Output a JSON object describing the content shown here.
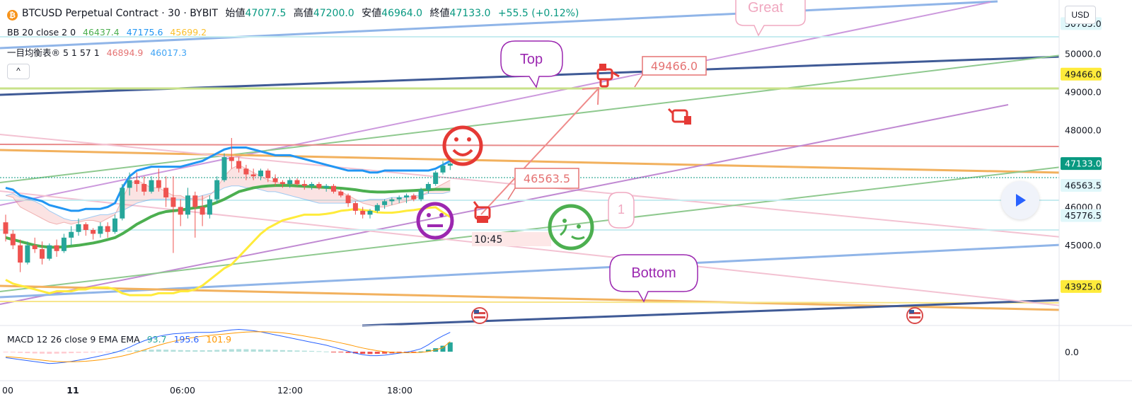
{
  "header": {
    "symbol_title": "BTCUSD Perpetual Contract · 30 · BYBIT",
    "coin_glyph": "₿",
    "open_label": "始値",
    "open_value": "47077.5",
    "high_label": "高値",
    "high_value": "47200.0",
    "low_label": "安値",
    "low_value": "46964.0",
    "close_label": "終値",
    "close_value": "47133.0",
    "change_value": "+55.5 (+0.12%)"
  },
  "bb_legend": {
    "name": "BB 20 close 2 0",
    "basis": "46437.4",
    "upper": "47175.6",
    "lower": "45699.2"
  },
  "ichimoku_legend": {
    "name": "一目均衡表® 5 1 57 1",
    "v1": "46894.9",
    "v2": "46017.3"
  },
  "macd_legend": {
    "name": "MACD 12 26 close 9 EMA EMA",
    "hist": "93.7",
    "macd": "195.6",
    "signal": "101.9"
  },
  "controls": {
    "collapse_glyph": "^",
    "currency": "USD"
  },
  "colors": {
    "up": "#26a69a",
    "down": "#ef5350",
    "bb_basis": "#4caf50",
    "bb_upper": "#2196f3",
    "bb_lower": "#ffeb3b",
    "ichimoku_a": "#e57373",
    "ichimoku_b": "#42a5f5",
    "macd_line": "#2962ff",
    "signal_line": "#ff9800"
  },
  "annotations": {
    "top_label": "Top",
    "bottom_label": "Bottom",
    "great_label": "Great",
    "one_label": "1",
    "price_tag_high": "49466.0",
    "price_tag_low": "46563.5",
    "time_label": "10:45"
  },
  "chart_data": {
    "type": "candlestick",
    "ylim": [
      43000,
      51400
    ],
    "y_ticks": [
      "50785.0",
      "50000.0",
      "49466.0",
      "49000.0",
      "48000.0",
      "47133.0",
      "46563.5",
      "46000.0",
      "45776.5",
      "45000.0",
      "43925.0"
    ],
    "x_ticks": [
      "00",
      "11",
      "06:00",
      "12:00",
      "18:00"
    ],
    "macd_y_tick": "0.0",
    "highlighted_levels": [
      {
        "label": "50785.0",
        "color": "#e0f7fa",
        "text": "#131722"
      },
      {
        "label": "49466.0",
        "color": "#ffeb3b",
        "text": "#131722"
      },
      {
        "label": "47133.0",
        "color": "#089981",
        "text": "#ffffff"
      },
      {
        "label": "46563.5",
        "color": "#e0f7fa",
        "text": "#131722"
      },
      {
        "label": "45776.5",
        "color": "#e0f7fa",
        "text": "#131722"
      },
      {
        "label": "43925.0",
        "color": "#ffeb3b",
        "text": "#131722"
      }
    ],
    "candles": [
      [
        45600,
        45800,
        45100,
        45300
      ],
      [
        45300,
        45400,
        44900,
        45000
      ],
      [
        45000,
        45150,
        44300,
        44550
      ],
      [
        44550,
        45100,
        44500,
        45000
      ],
      [
        45000,
        45200,
        44800,
        44900
      ],
      [
        44900,
        45100,
        44500,
        44650
      ],
      [
        44650,
        45050,
        44600,
        45000
      ],
      [
        45000,
        45150,
        44700,
        44850
      ],
      [
        44850,
        45300,
        44800,
        45200
      ],
      [
        45200,
        45500,
        45000,
        45350
      ],
      [
        45350,
        45700,
        45250,
        45550
      ],
      [
        45550,
        45600,
        45250,
        45400
      ],
      [
        45400,
        45450,
        45150,
        45300
      ],
      [
        45300,
        45600,
        45200,
        45500
      ],
      [
        45500,
        45600,
        45200,
        45350
      ],
      [
        45350,
        45800,
        45300,
        45700
      ],
      [
        45700,
        46600,
        45650,
        46500
      ],
      [
        46500,
        46900,
        46300,
        46700
      ],
      [
        46700,
        46900,
        46400,
        46600
      ],
      [
        46600,
        46800,
        46300,
        46400
      ],
      [
        46400,
        46800,
        46350,
        46700
      ],
      [
        46700,
        47000,
        46400,
        46500
      ],
      [
        46500,
        46800,
        46000,
        46250
      ],
      [
        46250,
        46800,
        44800,
        46000
      ],
      [
        46000,
        46200,
        45500,
        45800
      ],
      [
        45800,
        46500,
        45700,
        46300
      ],
      [
        46300,
        46400,
        45200,
        46000
      ],
      [
        46000,
        46300,
        45500,
        45800
      ],
      [
        45800,
        46300,
        45700,
        46200
      ],
      [
        46200,
        46800,
        46100,
        46700
      ],
      [
        46700,
        47400,
        46650,
        47300
      ],
      [
        47300,
        47800,
        47000,
        47200
      ],
      [
        47200,
        47300,
        46900,
        47000
      ],
      [
        47000,
        47100,
        46700,
        46850
      ],
      [
        46850,
        47000,
        46700,
        46800
      ],
      [
        46800,
        47000,
        46700,
        46950
      ],
      [
        46950,
        47000,
        46650,
        46750
      ],
      [
        46750,
        46850,
        46550,
        46650
      ],
      [
        46650,
        46700,
        46500,
        46600
      ],
      [
        46600,
        46750,
        46500,
        46700
      ],
      [
        46700,
        46750,
        46550,
        46600
      ],
      [
        46600,
        46700,
        46450,
        46550
      ],
      [
        46550,
        46650,
        46450,
        46600
      ],
      [
        46600,
        46650,
        46450,
        46500
      ],
      [
        46500,
        46600,
        46400,
        46550
      ],
      [
        46550,
        46600,
        46350,
        46400
      ],
      [
        46400,
        46450,
        46250,
        46300
      ],
      [
        46300,
        46350,
        46000,
        46100
      ],
      [
        46100,
        46150,
        45800,
        45900
      ],
      [
        45900,
        46000,
        45700,
        45800
      ],
      [
        45800,
        45950,
        45700,
        45900
      ],
      [
        45900,
        46100,
        45850,
        46050
      ],
      [
        46050,
        46200,
        45950,
        46150
      ],
      [
        46150,
        46250,
        46050,
        46200
      ],
      [
        46200,
        46300,
        46100,
        46250
      ],
      [
        46250,
        46350,
        46100,
        46300
      ],
      [
        46300,
        46350,
        46150,
        46200
      ],
      [
        46200,
        46500,
        46150,
        46450
      ],
      [
        46450,
        46650,
        46350,
        46600
      ],
      [
        46600,
        46950,
        46550,
        46900
      ],
      [
        46900,
        47200,
        46850,
        47077.5
      ],
      [
        47077.5,
        47200,
        46964,
        47133
      ]
    ],
    "bb_basis": [
      45200,
      45150,
      45100,
      45050,
      45000,
      44970,
      44950,
      44950,
      44960,
      44980,
      45000,
      45030,
      45060,
      45100,
      45150,
      45200,
      45300,
      45420,
      45550,
      45650,
      45750,
      45830,
      45880,
      45900,
      45920,
      45950,
      45980,
      46000,
      46050,
      46120,
      46200,
      46300,
      46400,
      46450,
      46500,
      46530,
      46550,
      46560,
      46560,
      46560,
      46550,
      46540,
      46530,
      46520,
      46510,
      46500,
      46490,
      46470,
      46450,
      46420,
      46400,
      46390,
      46390,
      46400,
      46410,
      46420,
      46430,
      46440,
      46450,
      46460,
      46460,
      46460
    ],
    "bb_upper": [
      46500,
      46450,
      46300,
      46250,
      46200,
      46150,
      46050,
      46000,
      45950,
      45900,
      45900,
      45950,
      45950,
      45950,
      46000,
      46100,
      46500,
      46800,
      46950,
      47000,
      47050,
      47050,
      47050,
      47050,
      47050,
      47100,
      47150,
      47200,
      47300,
      47400,
      47500,
      47550,
      47550,
      47550,
      47500,
      47450,
      47400,
      47350,
      47350,
      47350,
      47300,
      47250,
      47200,
      47150,
      47100,
      47050,
      47000,
      46950,
      46950,
      46950,
      46900,
      46900,
      46950,
      46950,
      46950,
      46950,
      46950,
      46950,
      46950,
      47000,
      47100,
      47200
    ],
    "bb_lower": [
      44100,
      44000,
      43950,
      43900,
      43850,
      43800,
      43750,
      43800,
      43800,
      43800,
      43850,
      43850,
      43900,
      43900,
      43900,
      43850,
      43750,
      43700,
      43700,
      43700,
      43700,
      43750,
      43750,
      43750,
      43800,
      43800,
      43850,
      43950,
      44100,
      44250,
      44400,
      44500,
      44700,
      44900,
      45100,
      45300,
      45450,
      45550,
      45650,
      45700,
      45750,
      45800,
      45800,
      45800,
      45820,
      45850,
      45900,
      45920,
      45950,
      45920,
      45900,
      45860,
      45850,
      45850,
      45870,
      45900,
      45920,
      45950,
      45980,
      45990,
      45860,
      45740
    ],
    "ichimoku_a": [
      46300,
      46250,
      46000,
      45900,
      45800,
      45700,
      45600,
      45550,
      45600,
      45550,
      45600,
      45650,
      45650,
      45600,
      45700,
      45800,
      46200,
      46600,
      46700,
      46600,
      46500,
      46500,
      46400,
      46300,
      46300,
      46200,
      46200,
      46200,
      46300,
      46500,
      46800,
      47000,
      47100,
      47000,
      46900,
      46800,
      46700,
      46650,
      46600,
      46600,
      46600,
      46550,
      46550,
      46550,
      46500,
      46450,
      46400,
      46300,
      46200,
      46100,
      46050,
      46000,
      46000,
      46050,
      46100,
      46150,
      46200,
      46300,
      46400,
      46500,
      46600,
      46700
    ],
    "ichimoku_b": [
      46300,
      46350,
      46250,
      46200,
      46150,
      46050,
      45900,
      45800,
      45700,
      45650,
      45650,
      45700,
      45750,
      45800,
      45800,
      45850,
      45900,
      46000,
      46100,
      46150,
      46200,
      46200,
      46200,
      46200,
      46200,
      46200,
      46250,
      46300,
      46350,
      46400,
      46500,
      46550,
      46550,
      46500,
      46500,
      46450,
      46400,
      46400,
      46350,
      46300,
      46250,
      46200,
      46150,
      46100,
      46100,
      46100,
      46100,
      46100,
      46150,
      46150,
      46200,
      46200,
      46200,
      46250,
      46250,
      46250,
      46300,
      46300,
      46350,
      46350,
      46350,
      46400
    ],
    "macd_hist": [
      -5,
      -8,
      -12,
      -15,
      -18,
      -20,
      -22,
      -20,
      -18,
      -15,
      -12,
      -10,
      -8,
      -5,
      -3,
      0,
      5,
      10,
      15,
      18,
      20,
      22,
      20,
      18,
      16,
      15,
      14,
      14,
      15,
      18,
      22,
      25,
      26,
      25,
      24,
      22,
      20,
      18,
      16,
      14,
      12,
      10,
      8,
      5,
      2,
      -2,
      -6,
      -12,
      -18,
      -22,
      -24,
      -22,
      -20,
      -16,
      -12,
      -8,
      -4,
      2,
      20,
      35,
      60,
      93.7
    ],
    "macd_line": [
      -60,
      -70,
      -80,
      -90,
      -100,
      -110,
      -120,
      -115,
      -108,
      -98,
      -86,
      -72,
      -58,
      -42,
      -25,
      -8,
      15,
      45,
      80,
      110,
      135,
      155,
      170,
      180,
      185,
      190,
      195,
      195,
      195,
      200,
      210,
      220,
      225,
      220,
      212,
      200,
      185,
      170,
      155,
      140,
      125,
      110,
      95,
      80,
      65,
      45,
      25,
      5,
      -15,
      -30,
      -40,
      -40,
      -35,
      -25,
      -15,
      -5,
      10,
      30,
      70,
      120,
      160,
      195.6
    ],
    "signal_line": [
      -50,
      -55,
      -62,
      -70,
      -78,
      -86,
      -94,
      -99,
      -102,
      -102,
      -100,
      -96,
      -90,
      -82,
      -71,
      -58,
      -44,
      -26,
      -5,
      18,
      42,
      65,
      86,
      104,
      120,
      134,
      146,
      156,
      164,
      171,
      178,
      186,
      193,
      198,
      201,
      202,
      200,
      196,
      190,
      181,
      170,
      158,
      145,
      132,
      118,
      104,
      88,
      72,
      54,
      37,
      22,
      10,
      1,
      -5,
      -9,
      -11,
      -10,
      -7,
      2,
      18,
      40,
      101.9
    ]
  }
}
